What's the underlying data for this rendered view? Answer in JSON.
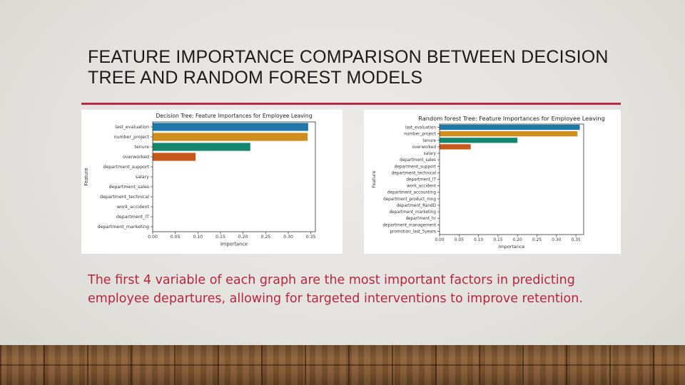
{
  "slide": {
    "title": "FEATURE IMPORTANCE COMPARISON BETWEEN DECISION TREE AND RANDOM FOREST MODELS",
    "caption": "The first 4 variable of each graph are the most important factors in predicting employee departures, allowing for targeted interventions to improve retention.",
    "accent_color": "#b82b45"
  },
  "chart_data": [
    {
      "type": "bar",
      "orientation": "horizontal",
      "title": "Decision Tree: Feature Importances for Employee Leaving",
      "xlabel": "Importance",
      "ylabel": "Feature",
      "xlim": [
        0,
        0.36
      ],
      "xticks": [
        "0.00",
        "0.05",
        "0.10",
        "0.15",
        "0.20",
        "0.25",
        "0.30",
        "0.35"
      ],
      "categories": [
        "last_evaluation",
        "number_project",
        "tenure",
        "overworked",
        "department_support",
        "salary",
        "department_sales",
        "department_technical",
        "work_accident",
        "department_IT",
        "department_marketing"
      ],
      "values": [
        0.344,
        0.343,
        0.216,
        0.095,
        0.0,
        0.0,
        0.0,
        0.0,
        0.0,
        0.0,
        0.0
      ],
      "colors": [
        "#1f78a8",
        "#d28e1c",
        "#12876e",
        "#c7581a"
      ],
      "grid": false
    },
    {
      "type": "bar",
      "orientation": "horizontal",
      "title": "Random forest Tree: Feature Importances for Employee Leaving",
      "xlabel": "Importance",
      "ylabel": "Feature",
      "xlim": [
        0,
        0.37
      ],
      "xticks": [
        "0.00",
        "0.05",
        "0.10",
        "0.15",
        "0.20",
        "0.25",
        "0.30",
        "0.35"
      ],
      "categories": [
        "last_evaluation",
        "number_project",
        "tenure",
        "overworked",
        "salary",
        "department_sales",
        "department_support",
        "department_technical",
        "department_IT",
        "work_accident",
        "department_accounting",
        "department_product_mng",
        "department_RandD",
        "department_marketing",
        "department_hr",
        "department_management",
        "promotion_last_5years"
      ],
      "values": [
        0.36,
        0.354,
        0.2,
        0.08,
        0.0,
        0.0,
        0.0,
        0.0,
        0.0,
        0.0,
        0.0,
        0.0,
        0.0,
        0.0,
        0.0,
        0.0,
        0.0
      ],
      "colors": [
        "#1f78a8",
        "#d28e1c",
        "#12876e",
        "#c7581a"
      ],
      "grid": false
    }
  ]
}
